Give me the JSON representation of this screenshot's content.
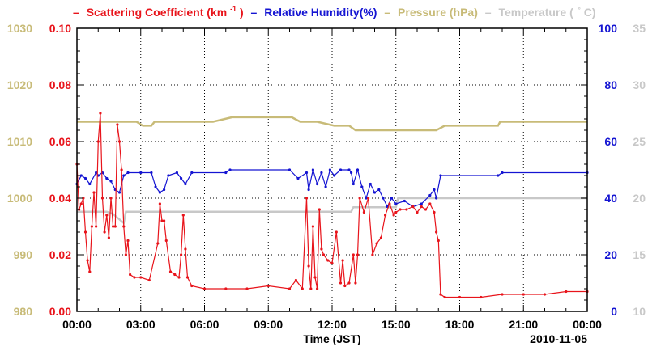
{
  "legend": {
    "scattering": {
      "label": "Scattering Coefficient (km",
      "sup": "-1",
      "tail": ")",
      "color": "#e8141b"
    },
    "humidity": {
      "label": "Relative Humidity(%)",
      "color": "#1414d2"
    },
    "pressure": {
      "label": "Pressure (hPa)",
      "color": "#c8bb78"
    },
    "temperature": {
      "label": "Temperature (",
      "unit": "C)",
      "color": "#c8c8c8"
    }
  },
  "xlabel": "Time (JST)",
  "date": "2010-11-05",
  "chart_data": {
    "type": "line",
    "x_range_hours": [
      0,
      24
    ],
    "x_ticks": [
      "00:00",
      "03:00",
      "06:00",
      "09:00",
      "12:00",
      "15:00",
      "18:00",
      "21:00",
      "00:00"
    ],
    "axes": {
      "scattering": {
        "ylim": [
          0,
          0.1
        ],
        "ticks": [
          "0.00",
          "0.02",
          "0.04",
          "0.06",
          "0.08",
          "0.10"
        ]
      },
      "pressure": {
        "ylim": [
          980,
          1030
        ],
        "ticks": [
          "980",
          "990",
          "1000",
          "1010",
          "1020",
          "1030"
        ]
      },
      "humidity": {
        "ylim": [
          0,
          100
        ],
        "ticks": [
          "0",
          "20",
          "40",
          "60",
          "80",
          "100"
        ]
      },
      "temperature": {
        "ylim": [
          10,
          35
        ],
        "ticks": [
          "10",
          "15",
          "20",
          "25",
          "30",
          "35"
        ]
      }
    },
    "series": [
      {
        "name": "Pressure (hPa)",
        "key": "pressure",
        "axis": "pressure",
        "x": [
          0,
          2.8,
          3.1,
          3.5,
          3.65,
          3.9,
          6.4,
          7.3,
          10.1,
          10.5,
          11.3,
          12.1,
          12.8,
          13.1,
          15.3,
          16.9,
          17.3,
          19.8,
          19.9,
          24
        ],
        "y": [
          1013.5,
          1013.5,
          1012.8,
          1012.8,
          1013.5,
          1013.5,
          1013.5,
          1014.3,
          1014.3,
          1013.5,
          1013.5,
          1012.8,
          1012.8,
          1012.0,
          1012.0,
          1012.0,
          1012.8,
          1012.8,
          1013.5,
          1013.5
        ]
      },
      {
        "name": "Temperature (C)",
        "key": "temperature",
        "axis": "temperature",
        "x": [
          0,
          1.4,
          1.7,
          2.2,
          2.3,
          12.9,
          13.0,
          15.0,
          15.1,
          16.9,
          17.0,
          24
        ],
        "y": [
          18.8,
          18.8,
          18.6,
          17.8,
          18.8,
          18.8,
          19.2,
          19.2,
          20.0,
          20.0,
          20.0,
          20.0
        ]
      },
      {
        "name": "Relative Humidity(%)",
        "key": "humidity",
        "axis": "humidity",
        "x": [
          0,
          0.2,
          0.4,
          0.6,
          0.9,
          1.0,
          1.2,
          1.4,
          1.6,
          1.8,
          2.0,
          2.2,
          2.4,
          3.0,
          3.5,
          3.7,
          3.9,
          4.1,
          4.3,
          4.7,
          4.9,
          5.1,
          5.4,
          7.0,
          7.2,
          10.0,
          10.4,
          10.8,
          10.9,
          11.1,
          11.3,
          11.5,
          11.7,
          11.9,
          12.1,
          12.4,
          12.8,
          12.9,
          13.0,
          13.2,
          13.4,
          13.6,
          13.8,
          14.0,
          14.2,
          14.4,
          14.6,
          14.8,
          15.0,
          15.4,
          15.8,
          16.2,
          16.6,
          16.8,
          16.9,
          17.1,
          19.8,
          20.0,
          24
        ],
        "y": [
          45,
          48,
          47,
          45,
          49,
          48,
          49,
          47,
          46,
          43,
          42,
          48,
          49,
          49,
          49,
          44,
          42,
          43,
          48,
          49,
          47,
          45,
          49,
          49,
          50,
          50,
          47,
          49,
          43,
          50,
          45,
          49,
          44,
          50,
          48,
          50,
          50,
          49,
          45,
          50,
          44,
          40,
          45,
          42,
          43,
          40,
          37,
          40,
          38,
          39,
          37,
          38,
          41,
          43,
          40,
          48,
          48,
          49,
          49
        ]
      },
      {
        "name": "Scattering Coefficient (km-1)",
        "key": "scattering",
        "axis": "scattering",
        "x": [
          0,
          0.1,
          0.2,
          0.3,
          0.4,
          0.5,
          0.6,
          0.7,
          0.8,
          0.9,
          1.0,
          1.1,
          1.2,
          1.3,
          1.4,
          1.5,
          1.6,
          1.7,
          1.8,
          1.9,
          2.0,
          2.1,
          2.2,
          2.3,
          2.4,
          2.5,
          2.7,
          3.0,
          3.4,
          3.8,
          3.9,
          4.0,
          4.1,
          4.2,
          4.4,
          4.6,
          4.8,
          4.9,
          5.0,
          5.1,
          5.2,
          5.4,
          6.0,
          7.0,
          8.0,
          9.0,
          10.0,
          10.3,
          10.6,
          10.8,
          10.9,
          11.0,
          11.1,
          11.2,
          11.3,
          11.4,
          11.5,
          11.6,
          11.8,
          12.0,
          12.2,
          12.4,
          12.5,
          12.6,
          12.8,
          13.0,
          13.1,
          13.2,
          13.3,
          13.5,
          13.7,
          13.9,
          14.1,
          14.3,
          14.5,
          14.7,
          14.9,
          15.0,
          15.2,
          15.5,
          15.8,
          16.0,
          16.2,
          16.4,
          16.6,
          16.8,
          16.9,
          17.0,
          17.1,
          17.3,
          18.0,
          19.0,
          20.0,
          21.0,
          22.0,
          23.0,
          24.0
        ],
        "y": [
          0.052,
          0.036,
          0.038,
          0.04,
          0.028,
          0.018,
          0.014,
          0.03,
          0.042,
          0.03,
          0.06,
          0.07,
          0.04,
          0.028,
          0.034,
          0.026,
          0.04,
          0.03,
          0.03,
          0.066,
          0.06,
          0.05,
          0.03,
          0.02,
          0.025,
          0.013,
          0.012,
          0.012,
          0.011,
          0.024,
          0.038,
          0.032,
          0.032,
          0.025,
          0.014,
          0.013,
          0.012,
          0.02,
          0.034,
          0.022,
          0.012,
          0.009,
          0.008,
          0.008,
          0.008,
          0.009,
          0.008,
          0.011,
          0.008,
          0.04,
          0.016,
          0.008,
          0.03,
          0.012,
          0.008,
          0.036,
          0.022,
          0.02,
          0.018,
          0.017,
          0.028,
          0.01,
          0.018,
          0.009,
          0.01,
          0.02,
          0.01,
          0.02,
          0.04,
          0.035,
          0.04,
          0.02,
          0.024,
          0.026,
          0.034,
          0.038,
          0.034,
          0.035,
          0.036,
          0.036,
          0.037,
          0.035,
          0.037,
          0.036,
          0.038,
          0.035,
          0.028,
          0.025,
          0.006,
          0.005,
          0.005,
          0.005,
          0.006,
          0.006,
          0.006,
          0.007,
          0.007
        ]
      }
    ]
  }
}
